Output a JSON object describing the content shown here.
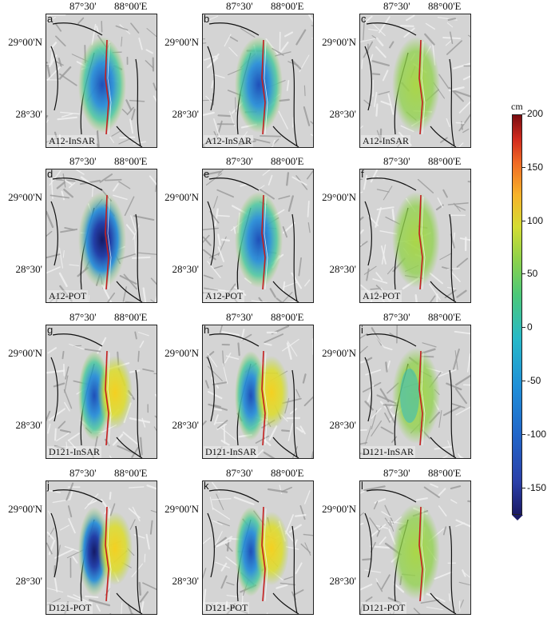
{
  "axes": {
    "lon_ticks": [
      "87°30'",
      "88°00'E"
    ],
    "lat_ticks": [
      "29°00'N",
      "28°30'"
    ]
  },
  "panels": [
    {
      "letter": "a",
      "label": "A12-InSAR",
      "style": "negative"
    },
    {
      "letter": "b",
      "label": "A12-InSAR",
      "style": "negative"
    },
    {
      "letter": "c",
      "label": "A12-InSAR",
      "style": "residual"
    },
    {
      "letter": "d",
      "label": "A12-POT",
      "style": "negative-strong"
    },
    {
      "letter": "e",
      "label": "A12-POT",
      "style": "negative"
    },
    {
      "letter": "f",
      "label": "A12-POT",
      "style": "residual"
    },
    {
      "letter": "g",
      "label": "D121-InSAR",
      "style": "dipole"
    },
    {
      "letter": "h",
      "label": "D121-InSAR",
      "style": "dipole"
    },
    {
      "letter": "i",
      "label": "D121-InSAR",
      "style": "residual-dipole"
    },
    {
      "letter": "j",
      "label": "D121-POT",
      "style": "dipole-strong"
    },
    {
      "letter": "k",
      "label": "D121-POT",
      "style": "dipole"
    },
    {
      "letter": "l",
      "label": "D121-POT",
      "style": "residual"
    }
  ],
  "colorbar": {
    "unit": "cm",
    "ticks": [
      "200",
      "150",
      "100",
      "50",
      "0",
      "-50",
      "-100",
      "-150"
    ],
    "tick_values": [
      200,
      150,
      100,
      50,
      0,
      -50,
      -100,
      -150
    ],
    "min": -175,
    "max": 200
  }
}
